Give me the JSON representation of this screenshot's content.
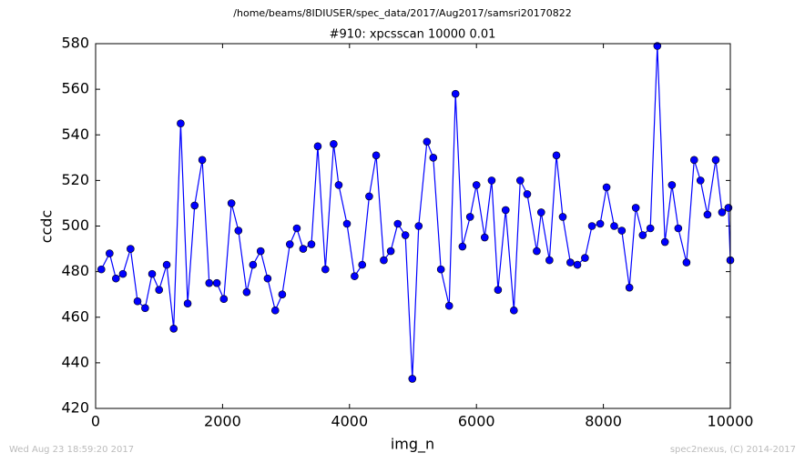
{
  "chart_data": {
    "type": "line",
    "suptitle": "/home/beams/8IDIUSER/spec_data/2017/Aug2017/samsri20170822",
    "title": "#910: xpcsscan 10000 0.01",
    "x_label": "img_n",
    "y_label": "ccdc",
    "footer_left": "Wed Aug 23 18:59:20 2017",
    "footer_right": "spec2nexus, (C) 2014-2017",
    "xlim": [
      0,
      10000
    ],
    "ylim": [
      420,
      580
    ],
    "xticks": [
      0,
      2000,
      4000,
      6000,
      8000,
      10000
    ],
    "yticks": [
      420,
      440,
      460,
      480,
      500,
      520,
      540,
      560,
      580
    ],
    "grid": false,
    "series": [
      {
        "name": "ccdc",
        "color": "#0000ff",
        "marker": "circle",
        "x": [
          90,
          220,
          320,
          430,
          550,
          660,
          780,
          890,
          1000,
          1120,
          1230,
          1340,
          1450,
          1560,
          1680,
          1790,
          1910,
          2020,
          2140,
          2250,
          2380,
          2480,
          2600,
          2710,
          2830,
          2940,
          3060,
          3170,
          3270,
          3400,
          3500,
          3620,
          3750,
          3830,
          3960,
          4080,
          4200,
          4310,
          4420,
          4540,
          4650,
          4760,
          4880,
          4990,
          5090,
          5220,
          5320,
          5440,
          5570,
          5670,
          5780,
          5900,
          6000,
          6130,
          6240,
          6340,
          6460,
          6590,
          6690,
          6800,
          6950,
          7020,
          7150,
          7260,
          7360,
          7480,
          7590,
          7710,
          7820,
          7950,
          8050,
          8170,
          8290,
          8410,
          8510,
          8620,
          8740,
          8850,
          8970,
          9080,
          9180,
          9310,
          9430,
          9530,
          9640,
          9770,
          9870,
          9970,
          10000
        ],
        "values": [
          481,
          488,
          477,
          479,
          490,
          467,
          464,
          479,
          472,
          483,
          455,
          545,
          466,
          509,
          529,
          475,
          475,
          468,
          510,
          498,
          471,
          483,
          489,
          477,
          463,
          470,
          492,
          499,
          490,
          492,
          535,
          481,
          536,
          518,
          501,
          478,
          483,
          513,
          531,
          485,
          489,
          501,
          496,
          433,
          500,
          537,
          530,
          481,
          465,
          558,
          491,
          504,
          518,
          495,
          520,
          472,
          507,
          463,
          520,
          514,
          489,
          506,
          485,
          531,
          504,
          484,
          483,
          486,
          500,
          501,
          517,
          500,
          498,
          473,
          508,
          496,
          499,
          579,
          493,
          518,
          499,
          484,
          529,
          520,
          505,
          529,
          506,
          508,
          485
        ]
      }
    ]
  }
}
